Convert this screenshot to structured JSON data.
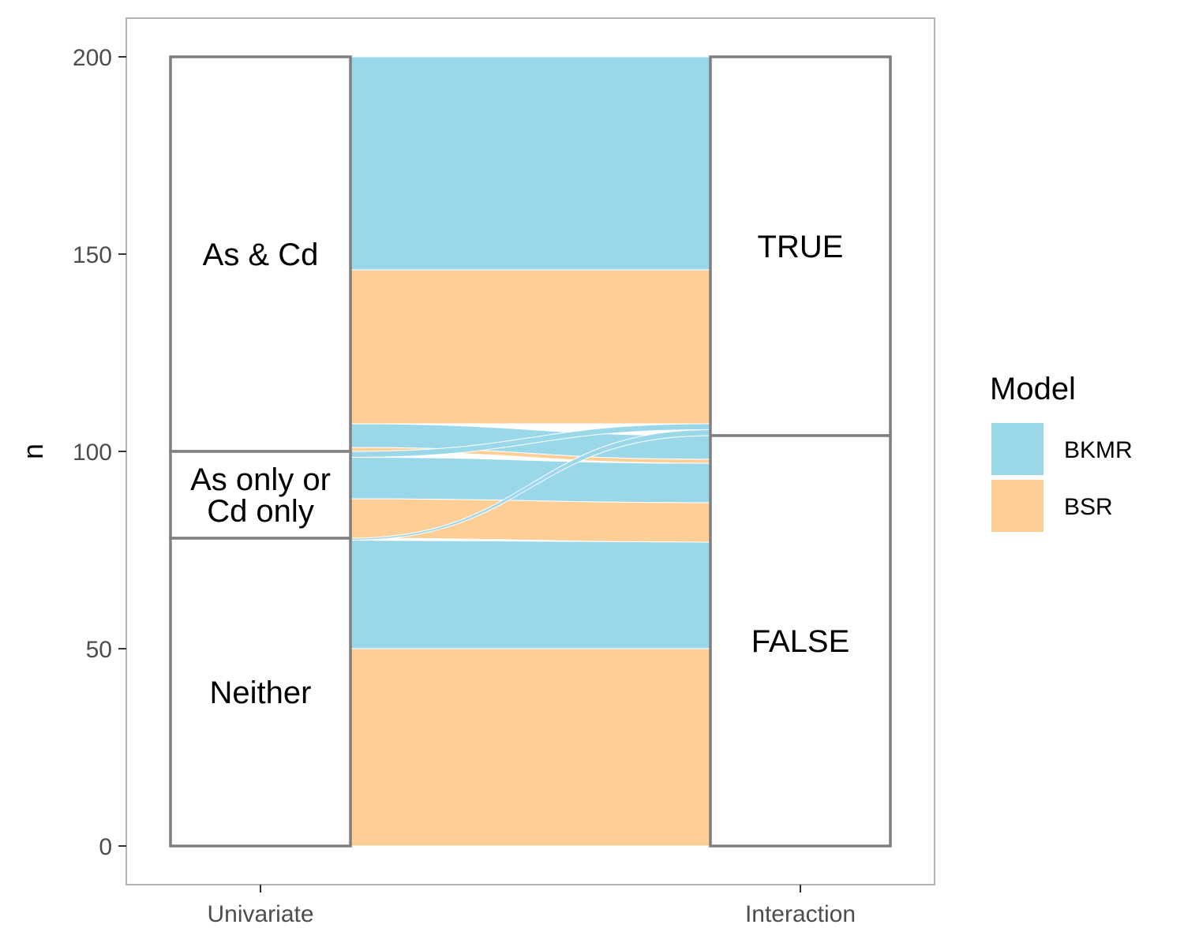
{
  "chart_data": {
    "type": "alluvial",
    "title": "",
    "xlabel": "",
    "ylabel": "n",
    "ylim": [
      0,
      200
    ],
    "yticks": [
      0,
      50,
      100,
      150,
      200
    ],
    "grid": false,
    "legend_position": "right",
    "axes": [
      "Univariate",
      "Interaction"
    ],
    "strata": {
      "Univariate": [
        {
          "label": "As & Cd",
          "from": 100,
          "to": 200,
          "text_lines": [
            "As & Cd"
          ]
        },
        {
          "label": "As only or Cd only",
          "from": 78,
          "to": 100,
          "text_lines": [
            "As only or",
            "Cd only"
          ]
        },
        {
          "label": "Neither",
          "from": 0,
          "to": 78,
          "text_lines": [
            "Neither"
          ]
        }
      ],
      "Interaction": [
        {
          "label": "TRUE",
          "from": 104,
          "to": 200,
          "text_lines": [
            "TRUE"
          ]
        },
        {
          "label": "FALSE",
          "from": 0,
          "to": 104,
          "text_lines": [
            "FALSE"
          ]
        }
      ]
    },
    "flows": [
      {
        "model": "BKMR",
        "from": "As & Cd",
        "to": "TRUE",
        "left": [
          146,
          200
        ],
        "right": [
          146,
          200
        ]
      },
      {
        "model": "BSR",
        "from": "As & Cd",
        "to": "TRUE",
        "left": [
          107,
          146
        ],
        "right": [
          107,
          146
        ]
      },
      {
        "model": "BKMR",
        "from": "As & Cd",
        "to": "FALSE",
        "left": [
          101,
          107
        ],
        "right": [
          98,
          104
        ]
      },
      {
        "model": "BSR",
        "from": "As & Cd",
        "to": "FALSE",
        "left": [
          100,
          101
        ],
        "right": [
          97,
          98
        ]
      },
      {
        "model": "BKMR",
        "from": "As only or Cd only",
        "to": "TRUE",
        "left": [
          98.5,
          100
        ],
        "right": [
          105.5,
          107
        ]
      },
      {
        "model": "BKMR",
        "from": "As only or Cd only",
        "to": "FALSE",
        "left": [
          88,
          98.5
        ],
        "right": [
          87,
          97
        ]
      },
      {
        "model": "BSR",
        "from": "As only or Cd only",
        "to": "FALSE",
        "left": [
          78,
          88
        ],
        "right": [
          77,
          87
        ]
      },
      {
        "model": "BKMR",
        "from": "Neither",
        "to": "TRUE",
        "left": [
          77.5,
          78
        ],
        "right": [
          104,
          105.5
        ]
      },
      {
        "model": "BKMR",
        "from": "Neither",
        "to": "FALSE",
        "left": [
          50,
          77.5
        ],
        "right": [
          50,
          77
        ]
      },
      {
        "model": "BSR",
        "from": "Neither",
        "to": "FALSE",
        "left": [
          0,
          50
        ],
        "right": [
          0,
          50
        ]
      }
    ],
    "legend": {
      "title": "Model",
      "entries": [
        {
          "label": "BKMR",
          "color": "#9AD7E8"
        },
        {
          "label": "BSR",
          "color": "#FDCF97"
        }
      ]
    },
    "colors": {
      "BKMR": "#9AD7E8",
      "BSR": "#FDCF97"
    }
  }
}
